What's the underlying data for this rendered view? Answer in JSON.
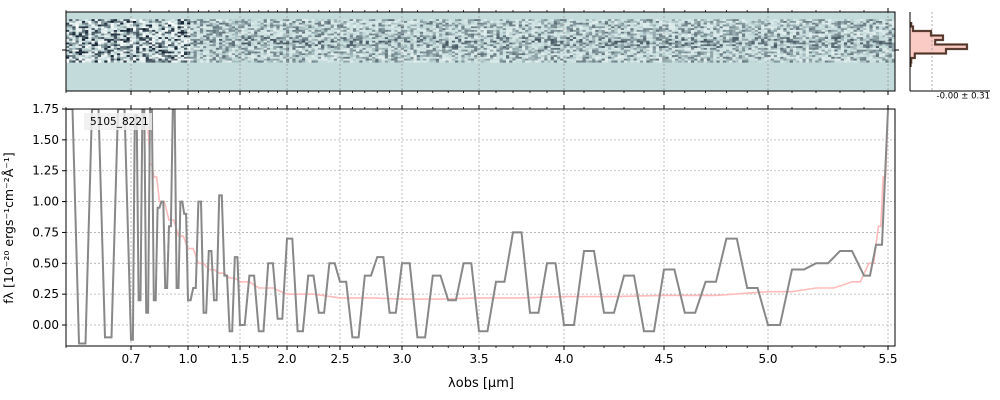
{
  "chart_data": [
    {
      "type": "heatmap",
      "panel": "2D spectrum",
      "description_values": "noisy 2D spectral cutout; strong noise at blue end (< 1.0 um), trace band in the middle rows",
      "rows": 44,
      "value_range": [
        -1,
        1
      ],
      "colormap": [
        "#0c1a2a",
        "#c3dbdb",
        "#ffffff"
      ],
      "background_color": "#c3dbdb"
    },
    {
      "type": "line",
      "panel": "profile",
      "annotation": "-0.00 ± 0.31",
      "profile_values": [
        0.02,
        0.05,
        0.35,
        0.55,
        0.42,
        0.95,
        0.6,
        0.08,
        0.02,
        0.01
      ],
      "fill_color": "#f7b9b0",
      "line_color": "#6b4436"
    },
    {
      "type": "line",
      "panel": "1D spectrum",
      "label": "5105_8221",
      "xlabel": "λobs [μm]",
      "ylabel": "fλ [10⁻²⁰ ergs⁻¹cm⁻²Å⁻¹]",
      "xlim": [
        0.6,
        5.52
      ],
      "x_scale": "reciprocal-ish (compressed at long wavelengths)",
      "xticks": [
        "0.7",
        "1.0",
        "1.5",
        "2.0",
        "2.5",
        "3.0",
        "3.5",
        "4.0",
        "4.5",
        "5.0",
        "5.5"
      ],
      "xtick_values": [
        0.7,
        1.0,
        1.5,
        2.0,
        2.5,
        3.0,
        3.5,
        4.0,
        4.5,
        5.0,
        5.5
      ],
      "ylim": [
        -0.17,
        1.75
      ],
      "yticks": [
        "0.00",
        "0.25",
        "0.50",
        "0.75",
        "1.00",
        "1.25",
        "1.50",
        "1.75"
      ],
      "ytick_values": [
        0.0,
        0.25,
        0.5,
        0.75,
        1.0,
        1.25,
        1.5,
        1.75
      ],
      "grid": true,
      "series": [
        {
          "role": "flux",
          "color": "#888888",
          "x": [
            0.6,
            0.62,
            0.64,
            0.66,
            0.68,
            0.7,
            0.72,
            0.74,
            0.76,
            0.78,
            0.8,
            0.82,
            0.84,
            0.86,
            0.88,
            0.9,
            0.92,
            0.94,
            0.96,
            0.98,
            1.0,
            1.05,
            1.1,
            1.15,
            1.2,
            1.25,
            1.3,
            1.35,
            1.4,
            1.45,
            1.5,
            1.6,
            1.7,
            1.8,
            1.9,
            2.0,
            2.1,
            2.2,
            2.3,
            2.4,
            2.5,
            2.6,
            2.7,
            2.8,
            2.9,
            3.0,
            3.1,
            3.2,
            3.3,
            3.4,
            3.5,
            3.6,
            3.7,
            3.8,
            3.9,
            4.0,
            4.1,
            4.2,
            4.3,
            4.4,
            4.5,
            4.6,
            4.7,
            4.8,
            4.9,
            5.0,
            5.1,
            5.2,
            5.3,
            5.4,
            5.45,
            5.5
          ],
          "y": [
            1.75,
            -0.15,
            1.75,
            -0.1,
            1.75,
            -0.12,
            1.7,
            0.2,
            1.75,
            0.1,
            1.75,
            0.2,
            0.95,
            1.0,
            0.3,
            0.8,
            1.75,
            0.3,
            1.0,
            0.9,
            0.2,
            0.3,
            1.0,
            0.1,
            0.6,
            0.2,
            1.05,
            0.4,
            -0.05,
            0.55,
            0.0,
            0.4,
            -0.05,
            0.5,
            0.05,
            0.7,
            -0.05,
            0.4,
            0.1,
            0.5,
            0.35,
            -0.1,
            0.4,
            0.55,
            0.1,
            0.5,
            -0.1,
            0.4,
            0.2,
            0.5,
            -0.05,
            0.35,
            0.75,
            0.1,
            0.5,
            0.0,
            0.6,
            0.1,
            0.4,
            -0.05,
            0.45,
            0.1,
            0.35,
            0.7,
            0.3,
            0.0,
            0.45,
            0.5,
            0.6,
            0.4,
            0.65,
            1.75
          ]
        },
        {
          "role": "error",
          "color": "#ffbbbb",
          "x": [
            0.78,
            0.8,
            0.82,
            0.85,
            0.9,
            0.95,
            1.0,
            1.1,
            1.2,
            1.3,
            1.4,
            1.5,
            1.7,
            2.0,
            2.5,
            3.0,
            3.5,
            4.0,
            4.5,
            5.0,
            5.2,
            5.35,
            5.42,
            5.46,
            5.48,
            5.5
          ],
          "y": [
            1.6,
            1.3,
            1.2,
            1.0,
            0.85,
            0.72,
            0.62,
            0.5,
            0.45,
            0.42,
            0.38,
            0.35,
            0.3,
            0.25,
            0.22,
            0.21,
            0.22,
            0.23,
            0.24,
            0.27,
            0.3,
            0.35,
            0.5,
            0.8,
            1.2,
            1.75
          ]
        }
      ]
    }
  ]
}
